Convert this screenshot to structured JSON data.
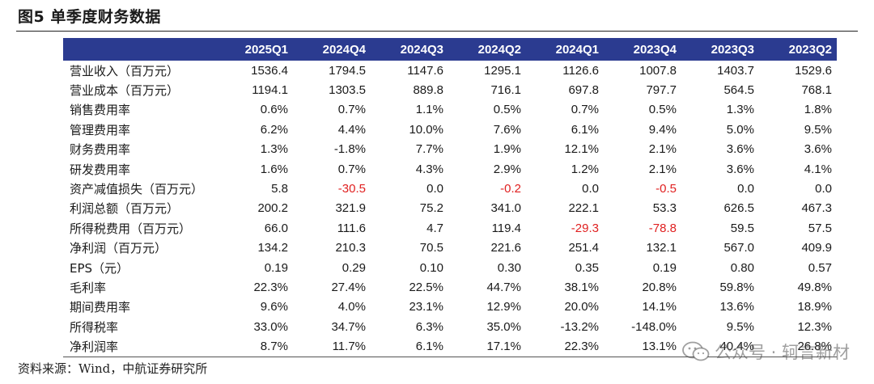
{
  "figure": {
    "title": "图5  单季度财务数据",
    "source": "资料来源：Wind，中航证券研究所"
  },
  "watermark": {
    "text": "公众号 · 轲言新材",
    "icon": "wechat-icon"
  },
  "colors": {
    "header_bg": "#2b3b90",
    "negative": "#e02020"
  },
  "table": {
    "columns": [
      "",
      "2025Q1",
      "2024Q4",
      "2024Q3",
      "2024Q2",
      "2024Q1",
      "2023Q4",
      "2023Q3",
      "2023Q2"
    ],
    "rows": [
      {
        "label": "营业收入（百万元）",
        "values": [
          "1536.4",
          "1794.5",
          "1147.6",
          "1295.1",
          "1126.6",
          "1007.8",
          "1403.7",
          "1529.6"
        ]
      },
      {
        "label": "营业成本（百万元）",
        "values": [
          "1194.1",
          "1303.5",
          "889.8",
          "716.1",
          "697.8",
          "797.7",
          "564.5",
          "768.1"
        ]
      },
      {
        "label": "销售费用率",
        "values": [
          "0.6%",
          "0.7%",
          "1.1%",
          "0.5%",
          "0.7%",
          "0.5%",
          "1.3%",
          "1.8%"
        ]
      },
      {
        "label": "管理费用率",
        "values": [
          "6.2%",
          "4.4%",
          "10.0%",
          "7.6%",
          "6.1%",
          "9.4%",
          "5.0%",
          "9.5%"
        ]
      },
      {
        "label": "财务费用率",
        "values": [
          "1.3%",
          "-1.8%",
          "7.7%",
          "1.9%",
          "12.1%",
          "2.1%",
          "3.6%",
          "3.6%"
        ]
      },
      {
        "label": "研发费用率",
        "values": [
          "1.6%",
          "0.7%",
          "4.3%",
          "2.9%",
          "1.2%",
          "2.1%",
          "3.6%",
          "4.1%"
        ]
      },
      {
        "label": "资产减值损失（百万元）",
        "values": [
          "5.8",
          "-30.5",
          "0.0",
          "-0.2",
          "0.0",
          "-0.5",
          "0.0",
          "0.0"
        ]
      },
      {
        "label": "利润总额（百万元）",
        "values": [
          "200.2",
          "321.9",
          "75.2",
          "341.0",
          "222.1",
          "53.3",
          "626.5",
          "467.3"
        ]
      },
      {
        "label": "所得税费用（百万元）",
        "values": [
          "66.0",
          "111.6",
          "4.7",
          "119.4",
          "-29.3",
          "-78.8",
          "59.5",
          "57.5"
        ]
      },
      {
        "label": "净利润（百万元）",
        "values": [
          "134.2",
          "210.3",
          "70.5",
          "221.6",
          "251.4",
          "132.1",
          "567.0",
          "409.9"
        ]
      },
      {
        "label": "EPS（元）",
        "values": [
          "0.19",
          "0.29",
          "0.10",
          "0.30",
          "0.35",
          "0.19",
          "0.80",
          "0.57"
        ]
      },
      {
        "label": "毛利率",
        "values": [
          "22.3%",
          "27.4%",
          "22.5%",
          "44.7%",
          "38.1%",
          "20.8%",
          "59.8%",
          "49.8%"
        ]
      },
      {
        "label": "期间费用率",
        "values": [
          "9.6%",
          "4.0%",
          "23.1%",
          "12.9%",
          "20.0%",
          "14.1%",
          "13.6%",
          "18.9%"
        ]
      },
      {
        "label": "所得税率",
        "values": [
          "33.0%",
          "34.7%",
          "6.3%",
          "35.0%",
          "-13.2%",
          "-148.0%",
          "9.5%",
          "12.3%"
        ]
      },
      {
        "label": "净利润率",
        "values": [
          "8.7%",
          "11.7%",
          "6.1%",
          "17.1%",
          "22.3%",
          "13.1%",
          "40.4%",
          "26.8%"
        ]
      }
    ],
    "red_cells": [
      [
        6,
        1
      ],
      [
        6,
        3
      ],
      [
        6,
        5
      ],
      [
        8,
        4
      ],
      [
        8,
        5
      ]
    ]
  }
}
